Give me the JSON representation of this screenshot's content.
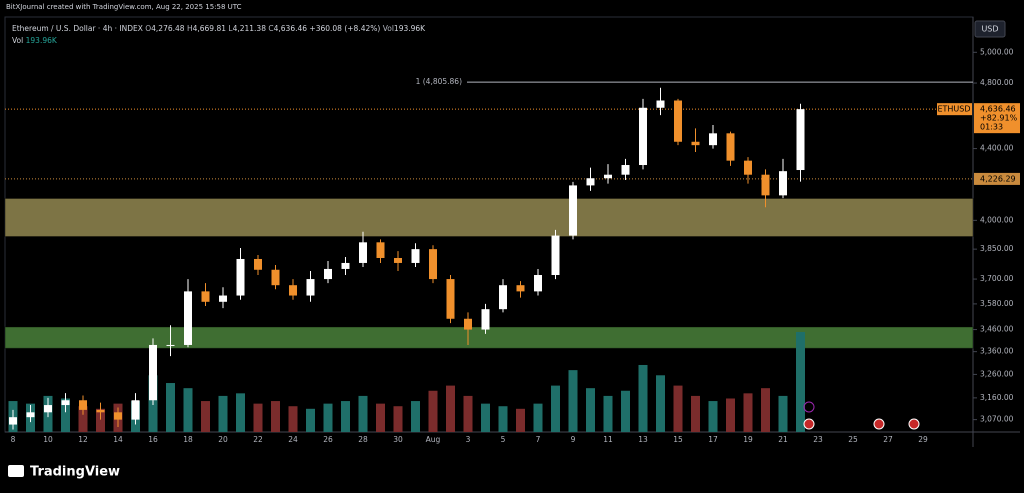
{
  "header": {
    "credit": "BitXJournal created with TradingView.com, Aug 22, 2025 15:58 UTC",
    "symbol": "Ethereum / U.S. Dollar · 4h · INDEX",
    "o_label": "O",
    "open": "4,276.48",
    "h_label": "H",
    "high": "4,669.81",
    "l_label": "L",
    "low": "4,211.38",
    "c_label": "C",
    "close": "4,636.46",
    "change": "+360.08 (+8.42%)",
    "vol_label": "Vol",
    "vol": "193.96K",
    "vol_row_label": "Vol",
    "vol_row": "193.96K",
    "currency": "USD",
    "brand": "TradingView"
  },
  "chart_data": {
    "type": "candlestick",
    "log_scale": true,
    "categories": [
      "8",
      null,
      "10",
      null,
      "12",
      null,
      "14",
      null,
      "16",
      null,
      "18",
      null,
      "20",
      null,
      "22",
      null,
      "24",
      null,
      "26",
      null,
      "28",
      null,
      "30",
      null,
      "Aug",
      null,
      "3",
      null,
      "5",
      null,
      "7",
      null,
      "9",
      null,
      "11",
      null,
      "13",
      null,
      "15",
      null,
      "17",
      null,
      "19",
      null,
      "21",
      null,
      "23",
      null,
      "25",
      null,
      "27",
      null,
      "29"
    ],
    "opens": [
      3050,
      3080,
      3100,
      3130,
      3150,
      3110,
      3100,
      3070,
      3150,
      3390,
      3390,
      3640,
      3590,
      3620,
      3800,
      3746,
      3670,
      3620,
      3700,
      3750,
      3780,
      3885,
      3805,
      3780,
      3850,
      3700,
      3510,
      3460,
      3555,
      3670,
      3640,
      3720,
      3920,
      4190,
      4230,
      4250,
      4305,
      4645,
      4690,
      4440,
      4420,
      4490,
      4330,
      4250,
      4135,
      4276.48,
      null,
      null,
      null,
      null,
      null,
      null,
      null
    ],
    "highs": [
      3110,
      3130,
      3160,
      3180,
      3170,
      3140,
      3120,
      3180,
      3420,
      3480,
      3700,
      3680,
      3660,
      3856,
      3820,
      3770,
      3700,
      3740,
      3790,
      3810,
      3940,
      3900,
      3840,
      3880,
      3870,
      3720,
      3540,
      3580,
      3700,
      3690,
      3750,
      3950,
      4210,
      4290,
      4310,
      4340,
      4700,
      4770,
      4700,
      4520,
      4540,
      4500,
      4350,
      4280,
      4340,
      4669.81,
      null,
      null,
      null,
      null,
      null,
      null,
      null
    ],
    "lows": [
      3030,
      3060,
      3080,
      3100,
      3090,
      3070,
      3040,
      3050,
      3130,
      3340,
      3380,
      3570,
      3560,
      3600,
      3720,
      3650,
      3600,
      3590,
      3680,
      3720,
      3760,
      3780,
      3740,
      3760,
      3680,
      3490,
      3390,
      3440,
      3540,
      3610,
      3620,
      3700,
      3900,
      4160,
      4200,
      4220,
      4280,
      4600,
      4420,
      4380,
      4400,
      4300,
      4200,
      4070,
      4120,
      4211.38,
      null,
      null,
      null,
      null,
      null,
      null,
      null
    ],
    "closes": [
      3080,
      3100,
      3130,
      3150,
      3110,
      3100,
      3070,
      3150,
      3390,
      3390,
      3640,
      3590,
      3620,
      3800,
      3746,
      3670,
      3620,
      3700,
      3750,
      3780,
      3885,
      3805,
      3780,
      3850,
      3700,
      3510,
      3460,
      3555,
      3670,
      3640,
      3720,
      3920,
      4190,
      4230,
      4250,
      4305,
      4645,
      4690,
      4440,
      4420,
      4490,
      4330,
      4250,
      4135,
      4270,
      4636.46,
      null,
      null,
      null,
      null,
      null,
      null,
      null
    ],
    "volumes": [
      60,
      55,
      70,
      65,
      50,
      45,
      55,
      60,
      110,
      95,
      85,
      60,
      70,
      75,
      55,
      60,
      50,
      45,
      55,
      60,
      70,
      55,
      50,
      60,
      80,
      90,
      70,
      55,
      50,
      45,
      55,
      90,
      120,
      85,
      70,
      80,
      130,
      110,
      90,
      70,
      60,
      65,
      75,
      85,
      70,
      193.96,
      null,
      null,
      null,
      null,
      null,
      null,
      null
    ],
    "up_color": "#ffffff",
    "down_color": "#f0902c",
    "vol_up_color": "#1f6f69",
    "vol_down_color": "#7b2c2c",
    "ylim": [
      3020,
      5240
    ],
    "yticks": [
      {
        "value": 5000,
        "label": "5,000.00"
      },
      {
        "value": 4800,
        "label": "4,800.00"
      },
      {
        "value": 4400,
        "label": "4,400.00"
      },
      {
        "value": 4000,
        "label": "4,000.00"
      },
      {
        "value": 3850,
        "label": "3,850.00"
      },
      {
        "value": 3700,
        "label": "3,700.00"
      },
      {
        "value": 3580,
        "label": "3,580.00"
      },
      {
        "value": 3460,
        "label": "3,460.00"
      },
      {
        "value": 3360,
        "label": "3,360.00"
      },
      {
        "value": 3260,
        "label": "3,260.00"
      },
      {
        "value": 3160,
        "label": "3,160.00"
      },
      {
        "value": 3070,
        "label": "3,070.00"
      }
    ],
    "zones": [
      {
        "from": 3915,
        "to": 4118,
        "color": "#7d7445"
      },
      {
        "from": 3375,
        "to": 3472,
        "color": "#3f6e32"
      }
    ],
    "high_line": {
      "value": 4805.86,
      "label": "1 (4,805.86)"
    },
    "last_price": {
      "value": 4636.46,
      "label": "4,636.46",
      "symbol": "ETHUSD",
      "change": "+82.91%",
      "countdown": "01:33",
      "color": "#f0902c"
    },
    "prev_close": {
      "value": 4226.29,
      "label": "4,226.29",
      "color": "#c98a3d"
    }
  }
}
